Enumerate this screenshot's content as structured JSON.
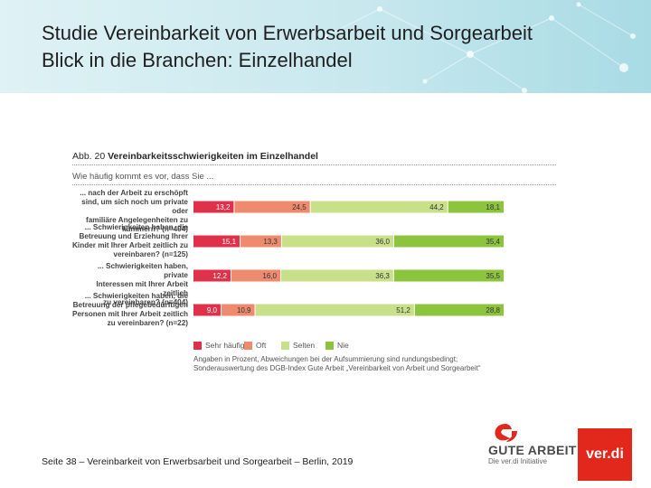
{
  "header": {
    "title": "Studie Vereinbarkeit von Erwerbsarbeit und Sorgearbeit",
    "subtitle": "Blick in die Branchen: Einzelhandel"
  },
  "figure": {
    "number": "Abb. 20",
    "title": "Vereinbarkeitsschwierigkeiten im Einzelhandel",
    "question": "Wie häufig kommt es vor, dass Sie ..."
  },
  "chart_data": {
    "type": "bar",
    "stacked": true,
    "orientation": "horizontal",
    "categories": [
      [
        "... nach der Arbeit zu erschöpft",
        "sind, um sich noch um private oder",
        "familiäre Angelegenheiten zu",
        "kümmern? (n=404)"
      ],
      [
        "... Schwierigkeiten haben, die",
        "Betreuung und Erziehung Ihrer",
        "Kinder mit Ihrer Arbeit zeitlich zu",
        "vereinbaren? (n=125)"
      ],
      [
        "... Schwierigkeiten haben, private",
        "Interessen mit Ihrer Arbeit zeitlich",
        "zu vereinbaren? (n=404)"
      ],
      [
        "... Schwierigkeiten haben, die",
        "Betreuung der pflegebedürftigen",
        "Personen mit Ihrer Arbeit zeitlich",
        "zu vereinbaren? (n=22)"
      ]
    ],
    "series": [
      {
        "name": "Sehr häufig",
        "color": "#e0314a",
        "values": [
          "13,2",
          "15,1",
          "12,2",
          "9,0"
        ]
      },
      {
        "name": "Oft",
        "color": "#ee8a6e",
        "values": [
          "24,5",
          "13,3",
          "16,0",
          "10,9"
        ]
      },
      {
        "name": "Selten",
        "color": "#c9e08a",
        "values": [
          "44,2",
          "36,0",
          "36,3",
          "51,2"
        ]
      },
      {
        "name": "Nie",
        "color": "#8cc43e",
        "values": [
          "18,1",
          "35,4",
          "35,5",
          "28,8"
        ]
      }
    ],
    "legend_position": "bottom",
    "note": [
      "Angaben in Prozent, Abweichungen bei der Aufsummierung sind rundungsbedingt;",
      "Sonderauswertung des DGB-Index Gute Arbeit „Vereinbarkeit von Arbeit und Sorgearbeit“"
    ]
  },
  "footer": {
    "text": "Seite 38 – Vereinbarkeit von Erwerbsarbeit und Sorgearbeit – Berlin, 2019"
  },
  "logos": {
    "gute_arbeit": "GUTE ARBEIT",
    "gute_arbeit_sub": "Die ver.di Initiative",
    "verdi": "ver.di",
    "gute_arbeit_color": "#e2281c",
    "verdi_color": "#e2281c"
  }
}
